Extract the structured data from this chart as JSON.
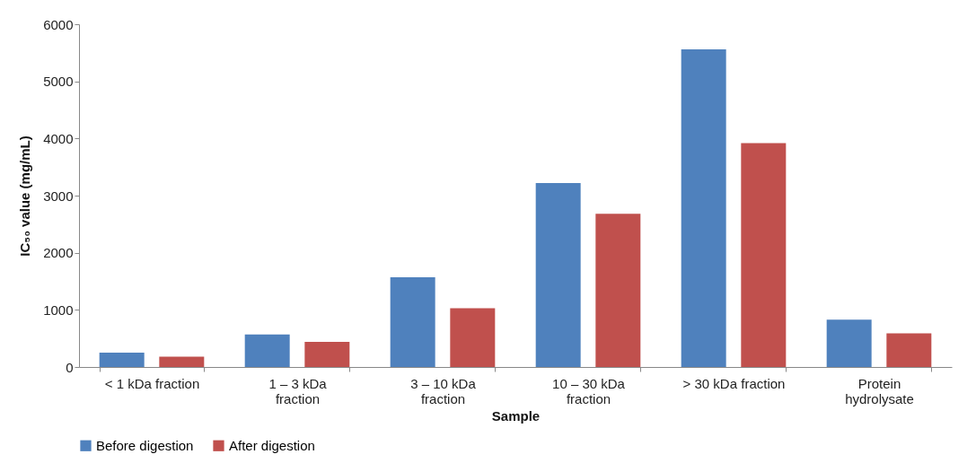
{
  "chart_data": {
    "type": "bar",
    "xlabel": "Sample",
    "ylabel": "IC₅₀ value (mg/mL)",
    "categories": [
      "< 1 kDa fraction",
      "1 – 3 kDa fraction",
      "3 – 10 kDa fraction",
      "10 – 30 kDa fraction",
      "> 30 kDa fraction",
      "Protein hydrolysate"
    ],
    "series": [
      {
        "name": "Before digestion",
        "color": "#4f81bd",
        "values": [
          250,
          570,
          1570,
          3220,
          5560,
          830
        ]
      },
      {
        "name": "After digestion",
        "color": "#c0504d",
        "values": [
          180,
          440,
          1030,
          2680,
          3920,
          590
        ]
      }
    ],
    "ylim": [
      0,
      6000
    ],
    "yticks": [
      0,
      1000,
      2000,
      3000,
      4000,
      5000,
      6000
    ],
    "grid": false,
    "legend": "bottom"
  }
}
